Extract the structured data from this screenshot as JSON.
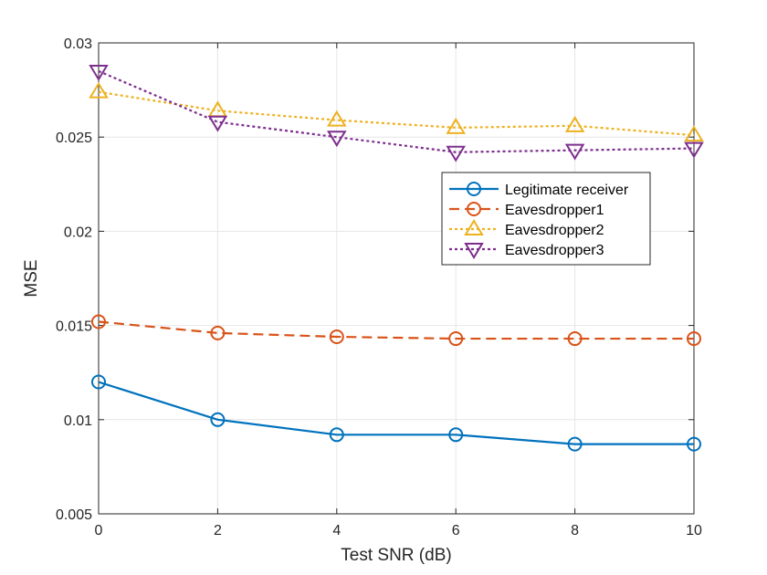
{
  "chart_data": {
    "type": "line",
    "title": "",
    "xlabel": "Test SNR (dB)",
    "ylabel": "MSE",
    "x": [
      0,
      2,
      4,
      6,
      8,
      10
    ],
    "xlim": [
      0,
      10
    ],
    "ylim": [
      0.005,
      0.03
    ],
    "xticks": [
      0,
      2,
      4,
      6,
      8,
      10
    ],
    "xtick_labels": [
      "0",
      "2",
      "4",
      "6",
      "8",
      "10"
    ],
    "yticks": [
      0.005,
      0.01,
      0.015,
      0.02,
      0.025,
      0.03
    ],
    "ytick_labels": [
      "0.005",
      "0.01",
      "0.015",
      "0.02",
      "0.025",
      "0.03"
    ],
    "grid": true,
    "legend_position": "upper-right",
    "series": [
      {
        "name": "Legitimate receiver",
        "values": [
          0.012,
          0.01,
          0.0092,
          0.0092,
          0.0087,
          0.0087
        ],
        "color": "#0072BD",
        "linestyle": "solid",
        "marker": "circle"
      },
      {
        "name": "Eavesdropper1",
        "values": [
          0.0152,
          0.0146,
          0.0144,
          0.0143,
          0.0143,
          0.0143
        ],
        "color": "#D95319",
        "linestyle": "dashed",
        "marker": "circle"
      },
      {
        "name": "Eavesdropper2",
        "values": [
          0.0274,
          0.0264,
          0.0259,
          0.0255,
          0.0256,
          0.0251
        ],
        "color": "#EDB120",
        "linestyle": "dotted",
        "marker": "triangle-up"
      },
      {
        "name": "Eavesdropper3",
        "values": [
          0.0285,
          0.0258,
          0.025,
          0.0242,
          0.0243,
          0.0244
        ],
        "color": "#7E2F8E",
        "linestyle": "dotted",
        "marker": "triangle-down"
      }
    ]
  }
}
